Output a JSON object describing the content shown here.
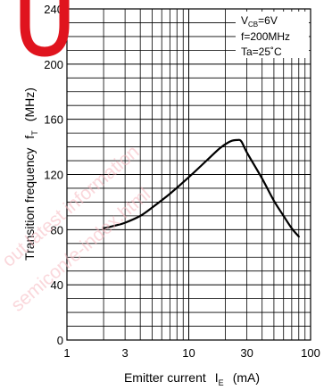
{
  "chart_data": {
    "type": "line",
    "title": "",
    "xlabel": {
      "text": "Emitter current",
      "symbol": "I",
      "subscript": "E",
      "unit": "(mA)"
    },
    "ylabel": {
      "text": "Transition frequency",
      "symbol": "f",
      "subscript": "T",
      "unit": "(MHz)"
    },
    "x_scale": "log",
    "xlim": [
      1,
      100
    ],
    "ylim": [
      0,
      240
    ],
    "x_ticks": [
      {
        "value": 1,
        "label": "1"
      },
      {
        "value": 3,
        "label": "3"
      },
      {
        "value": 10,
        "label": "10"
      },
      {
        "value": 30,
        "label": "30"
      },
      {
        "value": 100,
        "label": "100"
      }
    ],
    "y_ticks": [
      {
        "value": 0,
        "label": "0"
      },
      {
        "value": 40,
        "label": "40"
      },
      {
        "value": 80,
        "label": "80"
      },
      {
        "value": 120,
        "label": "120"
      },
      {
        "value": 160,
        "label": "160"
      },
      {
        "value": 200,
        "label": "200"
      },
      {
        "value": 240,
        "label": "240"
      }
    ],
    "grid": true,
    "conditions": {
      "vcb": {
        "symbol": "V",
        "subscript": "CB",
        "value": "=6V"
      },
      "freq": "f=200MHz",
      "ta": "Ta=25˚C"
    },
    "series": [
      {
        "x": [
          2,
          2.5,
          3,
          4,
          5,
          7,
          10,
          14,
          18,
          22,
          25,
          27,
          30,
          40,
          50,
          60,
          70,
          80
        ],
        "y": [
          81,
          83,
          85,
          90,
          96,
          106,
          118,
          130,
          139,
          144,
          145,
          144,
          136,
          117,
          101,
          90,
          81,
          75
        ]
      }
    ]
  },
  "watermark": {
    "lines": [
      "out latest information",
      "semicon/e-index.html"
    ],
    "logo_color": "#e0141e"
  }
}
